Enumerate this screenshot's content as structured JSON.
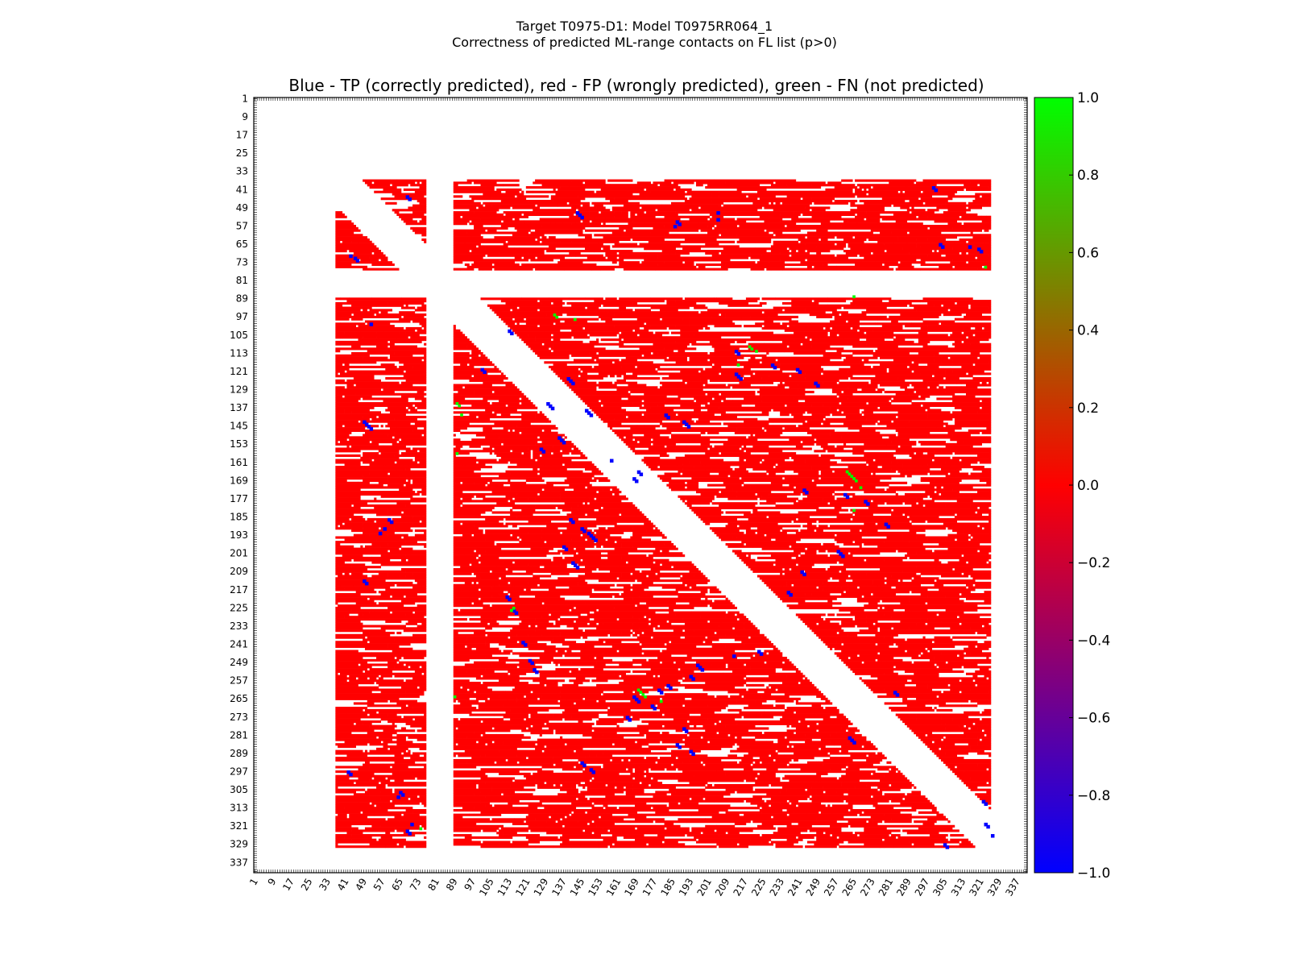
{
  "figure": {
    "title_line1": "Target T0975-D1: Model T0975RR064_1",
    "title_line2": "Correctness of predicted ML-range contacts on FL list (p>0)"
  },
  "chart_data": {
    "type": "heatmap",
    "title": "Blue - TP (correctly predicted), red - FP (wrongly predicted), green - FN (not predicted)",
    "xlabel": "",
    "ylabel": "",
    "x_range": [
      1,
      341
    ],
    "y_range": [
      1,
      341
    ],
    "y_inverted": true,
    "tick_labels": [
      "1",
      "9",
      "17",
      "25",
      "33",
      "41",
      "49",
      "57",
      "65",
      "73",
      "81",
      "89",
      "97",
      "105",
      "113",
      "121",
      "129",
      "137",
      "145",
      "153",
      "161",
      "169",
      "177",
      "185",
      "193",
      "201",
      "209",
      "217",
      "225",
      "233",
      "241",
      "249",
      "257",
      "265",
      "273",
      "281",
      "289",
      "297",
      "305",
      "313",
      "321",
      "329",
      "337"
    ],
    "colorbar": {
      "range": [
        -1.0,
        1.0
      ],
      "ticks": [
        "1.0",
        "0.8",
        "0.6",
        "0.4",
        "0.2",
        "0.0",
        "−0.2",
        "−0.4",
        "−0.6",
        "−0.8",
        "−1.0"
      ],
      "colors": {
        "low": "#0000ff",
        "mid": "#ff0000",
        "high": "#00ff00"
      }
    },
    "legend": {
      "tp": "#0000ff",
      "fp": "#ff0000",
      "fn": "#00ff00"
    },
    "fp_regions": [
      {
        "rows": [
          37,
          76
        ],
        "cols": [
          37,
          76
        ]
      },
      {
        "rows": [
          37,
          76
        ],
        "cols": [
          89,
          325
        ]
      },
      {
        "rows": [
          89,
          330
        ],
        "cols": [
          37,
          76
        ]
      },
      {
        "rows": [
          89,
          330
        ],
        "cols": [
          89,
          325
        ]
      }
    ],
    "diagonal_gap_residues": 12,
    "tp_points": [
      [
        44,
        68
      ],
      [
        45,
        69
      ],
      [
        51,
        143
      ],
      [
        52,
        144
      ],
      [
        53,
        145
      ],
      [
        55,
        187
      ],
      [
        56,
        188
      ],
      [
        57,
        186
      ],
      [
        54,
        205
      ],
      [
        51,
        205
      ],
      [
        40,
        300
      ],
      [
        41,
        301
      ],
      [
        65,
        303
      ],
      [
        66,
        304
      ],
      [
        67,
        320
      ],
      [
        68,
        321
      ],
      [
        66,
        316
      ],
      [
        71,
        45
      ],
      [
        72,
        46
      ],
      [
        70,
        43
      ],
      [
        100,
        52
      ],
      [
        143,
        49
      ],
      [
        144,
        50
      ],
      [
        145,
        51
      ],
      [
        146,
        52
      ],
      [
        186,
        60
      ],
      [
        187,
        61
      ],
      [
        190,
        58
      ],
      [
        192,
        56
      ],
      [
        213,
        49
      ],
      [
        214,
        50
      ],
      [
        297,
        42
      ],
      [
        298,
        43
      ],
      [
        306,
        65
      ],
      [
        307,
        66
      ],
      [
        308,
        64
      ],
      [
        323,
        68
      ],
      [
        324,
        69
      ],
      [
        320,
        70
      ],
      [
        103,
        113
      ],
      [
        104,
        114
      ],
      [
        120,
        101
      ],
      [
        121,
        102
      ],
      [
        135,
        130
      ],
      [
        136,
        131
      ],
      [
        137,
        132
      ],
      [
        138,
        147
      ],
      [
        139,
        148
      ],
      [
        140,
        149
      ],
      [
        150,
        135
      ],
      [
        151,
        136
      ],
      [
        152,
        137
      ],
      [
        156,
        128
      ],
      [
        155,
        127
      ],
      [
        124,
        139
      ],
      [
        125,
        140
      ],
      [
        126,
        141
      ],
      [
        140,
        182
      ],
      [
        141,
        183
      ],
      [
        143,
        190
      ],
      [
        144,
        191
      ],
      [
        145,
        192
      ],
      [
        122,
        213
      ],
      [
        123,
        214
      ],
      [
        124,
        215
      ],
      [
        118,
        229
      ],
      [
        119,
        230
      ],
      [
        120,
        240
      ],
      [
        121,
        241
      ],
      [
        126,
        248
      ],
      [
        127,
        249
      ],
      [
        112,
        213
      ],
      [
        113,
        214
      ],
      [
        165,
        170
      ],
      [
        166,
        171
      ],
      [
        168,
        168
      ],
      [
        169,
        169
      ],
      [
        160,
        158
      ],
      [
        190,
        145
      ],
      [
        191,
        146
      ],
      [
        194,
        150
      ],
      [
        195,
        151
      ],
      [
        198,
        137
      ],
      [
        199,
        138
      ],
      [
        205,
        141
      ],
      [
        206,
        142
      ],
      [
        207,
        143
      ],
      [
        200,
        258
      ],
      [
        201,
        259
      ],
      [
        202,
        260
      ],
      [
        209,
        242
      ],
      [
        210,
        243
      ],
      [
        218,
        236
      ],
      [
        219,
        237
      ],
      [
        244,
        223
      ],
      [
        245,
        224
      ],
      [
        246,
        212
      ],
      [
        250,
        196
      ],
      [
        251,
        197
      ],
      [
        252,
        198
      ],
      [
        255,
        193
      ],
      [
        256,
        194
      ],
      [
        259,
        183
      ],
      [
        260,
        184
      ],
      [
        261,
        179
      ],
      [
        262,
        180
      ],
      [
        264,
        168
      ],
      [
        265,
        169
      ],
      [
        266,
        170
      ],
      [
        268,
        176
      ],
      [
        269,
        177
      ],
      [
        282,
        263
      ],
      [
        283,
        264
      ],
      [
        284,
        265
      ],
      [
        262,
        283
      ],
      [
        263,
        284
      ],
      [
        175,
        261
      ],
      [
        176,
        262
      ],
      [
        178,
        270
      ],
      [
        179,
        271
      ],
      [
        188,
        279
      ],
      [
        189,
        280
      ],
      [
        173,
        243
      ],
      [
        174,
        244
      ],
      [
        220,
        112
      ],
      [
        221,
        113
      ],
      [
        226,
        115
      ],
      [
        227,
        116
      ],
      [
        240,
        119
      ],
      [
        241,
        120
      ],
      [
        248,
        122
      ],
      [
        249,
        123
      ],
      [
        252,
        124
      ],
      [
        253,
        125
      ],
      [
        273,
        165
      ],
      [
        274,
        166
      ],
      [
        278,
        190
      ],
      [
        279,
        191
      ],
      [
        285,
        187
      ],
      [
        286,
        188
      ],
      [
        288,
        193
      ],
      [
        289,
        194
      ],
      [
        293,
        145
      ],
      [
        294,
        146
      ],
      [
        296,
        149
      ],
      [
        297,
        150
      ],
      [
        320,
        323
      ],
      [
        321,
        324
      ],
      [
        325,
        326
      ],
      [
        329,
        305
      ],
      [
        330,
        306
      ],
      [
        310,
        322
      ],
      [
        311,
        323
      ],
      [
        186,
        140
      ],
      [
        187,
        141
      ],
      [
        192,
        148
      ],
      [
        193,
        149
      ]
    ],
    "fn_points": [
      [
        96,
        133
      ],
      [
        97,
        134
      ],
      [
        98,
        142
      ],
      [
        110,
        219
      ],
      [
        111,
        220
      ],
      [
        112,
        222
      ],
      [
        118,
        214
      ],
      [
        135,
        90
      ],
      [
        136,
        91
      ],
      [
        165,
        262
      ],
      [
        166,
        263
      ],
      [
        167,
        264
      ],
      [
        168,
        265
      ],
      [
        169,
        266
      ],
      [
        172,
        268
      ],
      [
        182,
        265
      ],
      [
        261,
        170
      ],
      [
        262,
        171
      ],
      [
        263,
        172
      ],
      [
        264,
        173
      ],
      [
        266,
        180
      ],
      [
        225,
        115
      ],
      [
        226,
        114
      ],
      [
        264,
        89
      ],
      [
        322,
        74
      ],
      [
        75,
        323
      ],
      [
        88,
        265
      ],
      [
        140,
        92
      ],
      [
        157,
        90
      ]
    ]
  }
}
